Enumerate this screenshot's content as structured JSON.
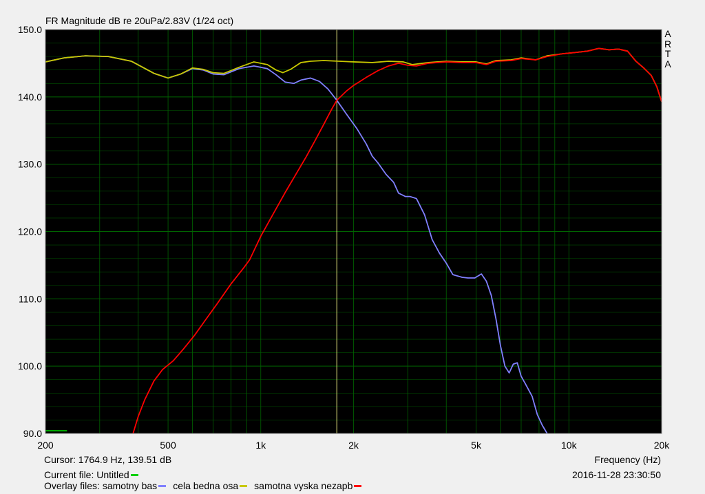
{
  "header": {
    "title": "FR Magnitude dB re 20uPa/2.83V (1/24 oct)",
    "logo_letters": [
      "A",
      "R",
      "T",
      "A"
    ]
  },
  "status": {
    "cursor": "Cursor: 1764.9 Hz, 139.51 dB",
    "xaxis_label": "Frequency (Hz)",
    "current_file_label": "Current file: Untitled",
    "current_file_color": "#00d000",
    "timestamp": "2016-11-28  23:30:50",
    "overlay_label": "Overlay files:",
    "overlays": [
      {
        "name": "samotny bas",
        "color": "#8080ff"
      },
      {
        "name": "cela bedna osa",
        "color": "#c8c800"
      },
      {
        "name": "samotna vyska nezapb",
        "color": "#ff0000"
      }
    ]
  },
  "chart_data": {
    "type": "line",
    "title": "FR Magnitude dB re 20uPa/2.83V (1/24 oct)",
    "xlabel": "Frequency (Hz)",
    "ylabel": "",
    "xscale": "log",
    "xlim": [
      200,
      20000
    ],
    "ylim": [
      90,
      150
    ],
    "x_ticks": [
      {
        "value": 200,
        "label": "200"
      },
      {
        "value": 500,
        "label": "500"
      },
      {
        "value": 1000,
        "label": "1k"
      },
      {
        "value": 2000,
        "label": "2k"
      },
      {
        "value": 5000,
        "label": "5k"
      },
      {
        "value": 10000,
        "label": "10k"
      },
      {
        "value": 20000,
        "label": "20k"
      }
    ],
    "y_ticks": [
      {
        "value": 90,
        "label": "90.0"
      },
      {
        "value": 100,
        "label": "100.0"
      },
      {
        "value": 110,
        "label": "110.0"
      },
      {
        "value": 120,
        "label": "120.0"
      },
      {
        "value": 130,
        "label": "130.0"
      },
      {
        "value": 140,
        "label": "140.0"
      },
      {
        "value": 150,
        "label": "150.0"
      }
    ],
    "grid": true,
    "background": "#000000",
    "grid_color": "#006400",
    "cursor": {
      "x": 1764.9,
      "y": 139.51,
      "color": "#e8e880"
    },
    "series": [
      {
        "name": "Untitled",
        "color": "#00d000",
        "points": [
          [
            200,
            90.4
          ],
          [
            235,
            90.4
          ]
        ]
      },
      {
        "name": "samotny bas",
        "color": "#8080ff",
        "points": [
          [
            200,
            145.2
          ],
          [
            230,
            145.8
          ],
          [
            270,
            146.1
          ],
          [
            320,
            146.0
          ],
          [
            380,
            145.3
          ],
          [
            450,
            143.5
          ],
          [
            500,
            142.8
          ],
          [
            550,
            143.4
          ],
          [
            600,
            144.2
          ],
          [
            650,
            144.0
          ],
          [
            700,
            143.4
          ],
          [
            760,
            143.3
          ],
          [
            850,
            144.2
          ],
          [
            950,
            144.6
          ],
          [
            1050,
            144.2
          ],
          [
            1120,
            143.3
          ],
          [
            1200,
            142.2
          ],
          [
            1280,
            142.0
          ],
          [
            1350,
            142.5
          ],
          [
            1450,
            142.8
          ],
          [
            1550,
            142.3
          ],
          [
            1650,
            141.2
          ],
          [
            1764.9,
            139.5
          ],
          [
            1900,
            137.4
          ],
          [
            2050,
            135.3
          ],
          [
            2200,
            133.0
          ],
          [
            2300,
            131.2
          ],
          [
            2400,
            130.2
          ],
          [
            2550,
            128.5
          ],
          [
            2700,
            127.3
          ],
          [
            2800,
            125.7
          ],
          [
            2950,
            125.2
          ],
          [
            3050,
            125.2
          ],
          [
            3200,
            124.9
          ],
          [
            3400,
            122.5
          ],
          [
            3600,
            118.8
          ],
          [
            3800,
            116.8
          ],
          [
            4000,
            115.3
          ],
          [
            4200,
            113.6
          ],
          [
            4500,
            113.2
          ],
          [
            4700,
            113.1
          ],
          [
            4950,
            113.1
          ],
          [
            5200,
            113.7
          ],
          [
            5400,
            112.6
          ],
          [
            5600,
            110.5
          ],
          [
            5800,
            107.0
          ],
          [
            6000,
            103.0
          ],
          [
            6200,
            100.0
          ],
          [
            6400,
            99.0
          ],
          [
            6600,
            100.3
          ],
          [
            6800,
            100.5
          ],
          [
            7000,
            98.5
          ],
          [
            7300,
            97.0
          ],
          [
            7600,
            95.5
          ],
          [
            7900,
            92.8
          ],
          [
            8200,
            91.2
          ],
          [
            8500,
            90.0
          ]
        ]
      },
      {
        "name": "cela bedna osa",
        "color": "#c8c800",
        "points": [
          [
            200,
            145.2
          ],
          [
            230,
            145.8
          ],
          [
            270,
            146.1
          ],
          [
            320,
            146.0
          ],
          [
            380,
            145.3
          ],
          [
            450,
            143.5
          ],
          [
            500,
            142.8
          ],
          [
            550,
            143.4
          ],
          [
            600,
            144.3
          ],
          [
            650,
            144.1
          ],
          [
            700,
            143.6
          ],
          [
            760,
            143.5
          ],
          [
            850,
            144.4
          ],
          [
            950,
            145.2
          ],
          [
            1050,
            144.8
          ],
          [
            1120,
            144.0
          ],
          [
            1180,
            143.6
          ],
          [
            1250,
            144.1
          ],
          [
            1350,
            145.1
          ],
          [
            1450,
            145.3
          ],
          [
            1600,
            145.4
          ],
          [
            1800,
            145.3
          ],
          [
            2000,
            145.2
          ],
          [
            2300,
            145.1
          ],
          [
            2600,
            145.3
          ],
          [
            2900,
            145.2
          ],
          [
            3100,
            144.8
          ],
          [
            3500,
            145.1
          ],
          [
            4000,
            145.3
          ],
          [
            4500,
            145.2
          ],
          [
            5000,
            145.2
          ],
          [
            5400,
            144.9
          ],
          [
            5800,
            145.4
          ],
          [
            6500,
            145.5
          ],
          [
            7000,
            145.8
          ],
          [
            7800,
            145.5
          ],
          [
            8500,
            146.1
          ],
          [
            9500,
            146.4
          ],
          [
            10500,
            146.6
          ],
          [
            11500,
            146.8
          ],
          [
            12500,
            147.2
          ],
          [
            13500,
            147.0
          ],
          [
            14500,
            147.1
          ],
          [
            15500,
            146.8
          ],
          [
            16500,
            145.3
          ],
          [
            17500,
            144.3
          ],
          [
            18500,
            143.2
          ],
          [
            19300,
            141.5
          ],
          [
            20000,
            139.3
          ]
        ]
      },
      {
        "name": "samotna vyska nezapb",
        "color": "#ff0000",
        "points": [
          [
            385,
            90.0
          ],
          [
            400,
            92.5
          ],
          [
            420,
            95.0
          ],
          [
            450,
            97.8
          ],
          [
            480,
            99.5
          ],
          [
            520,
            100.8
          ],
          [
            560,
            102.5
          ],
          [
            610,
            104.6
          ],
          [
            660,
            106.8
          ],
          [
            720,
            109.2
          ],
          [
            800,
            112.2
          ],
          [
            880,
            114.6
          ],
          [
            920,
            115.8
          ],
          [
            1000,
            119.3
          ],
          [
            1100,
            122.7
          ],
          [
            1200,
            125.8
          ],
          [
            1300,
            128.5
          ],
          [
            1400,
            131.0
          ],
          [
            1500,
            133.5
          ],
          [
            1600,
            135.9
          ],
          [
            1700,
            138.2
          ],
          [
            1764.9,
            139.5
          ],
          [
            1900,
            140.9
          ],
          [
            2000,
            141.7
          ],
          [
            2200,
            142.9
          ],
          [
            2400,
            143.9
          ],
          [
            2600,
            144.6
          ],
          [
            2800,
            145.0
          ],
          [
            3000,
            144.7
          ],
          [
            3200,
            144.6
          ],
          [
            3500,
            145.0
          ],
          [
            4000,
            145.2
          ],
          [
            4500,
            145.1
          ],
          [
            5000,
            145.1
          ],
          [
            5400,
            144.8
          ],
          [
            5800,
            145.3
          ],
          [
            6500,
            145.4
          ],
          [
            7000,
            145.7
          ],
          [
            7800,
            145.5
          ],
          [
            8500,
            146.0
          ],
          [
            9500,
            146.4
          ],
          [
            10500,
            146.6
          ],
          [
            11500,
            146.8
          ],
          [
            12500,
            147.2
          ],
          [
            13500,
            147.0
          ],
          [
            14500,
            147.1
          ],
          [
            15500,
            146.8
          ],
          [
            16500,
            145.3
          ],
          [
            17500,
            144.3
          ],
          [
            18500,
            143.2
          ],
          [
            19300,
            141.5
          ],
          [
            20000,
            139.3
          ]
        ]
      }
    ]
  }
}
